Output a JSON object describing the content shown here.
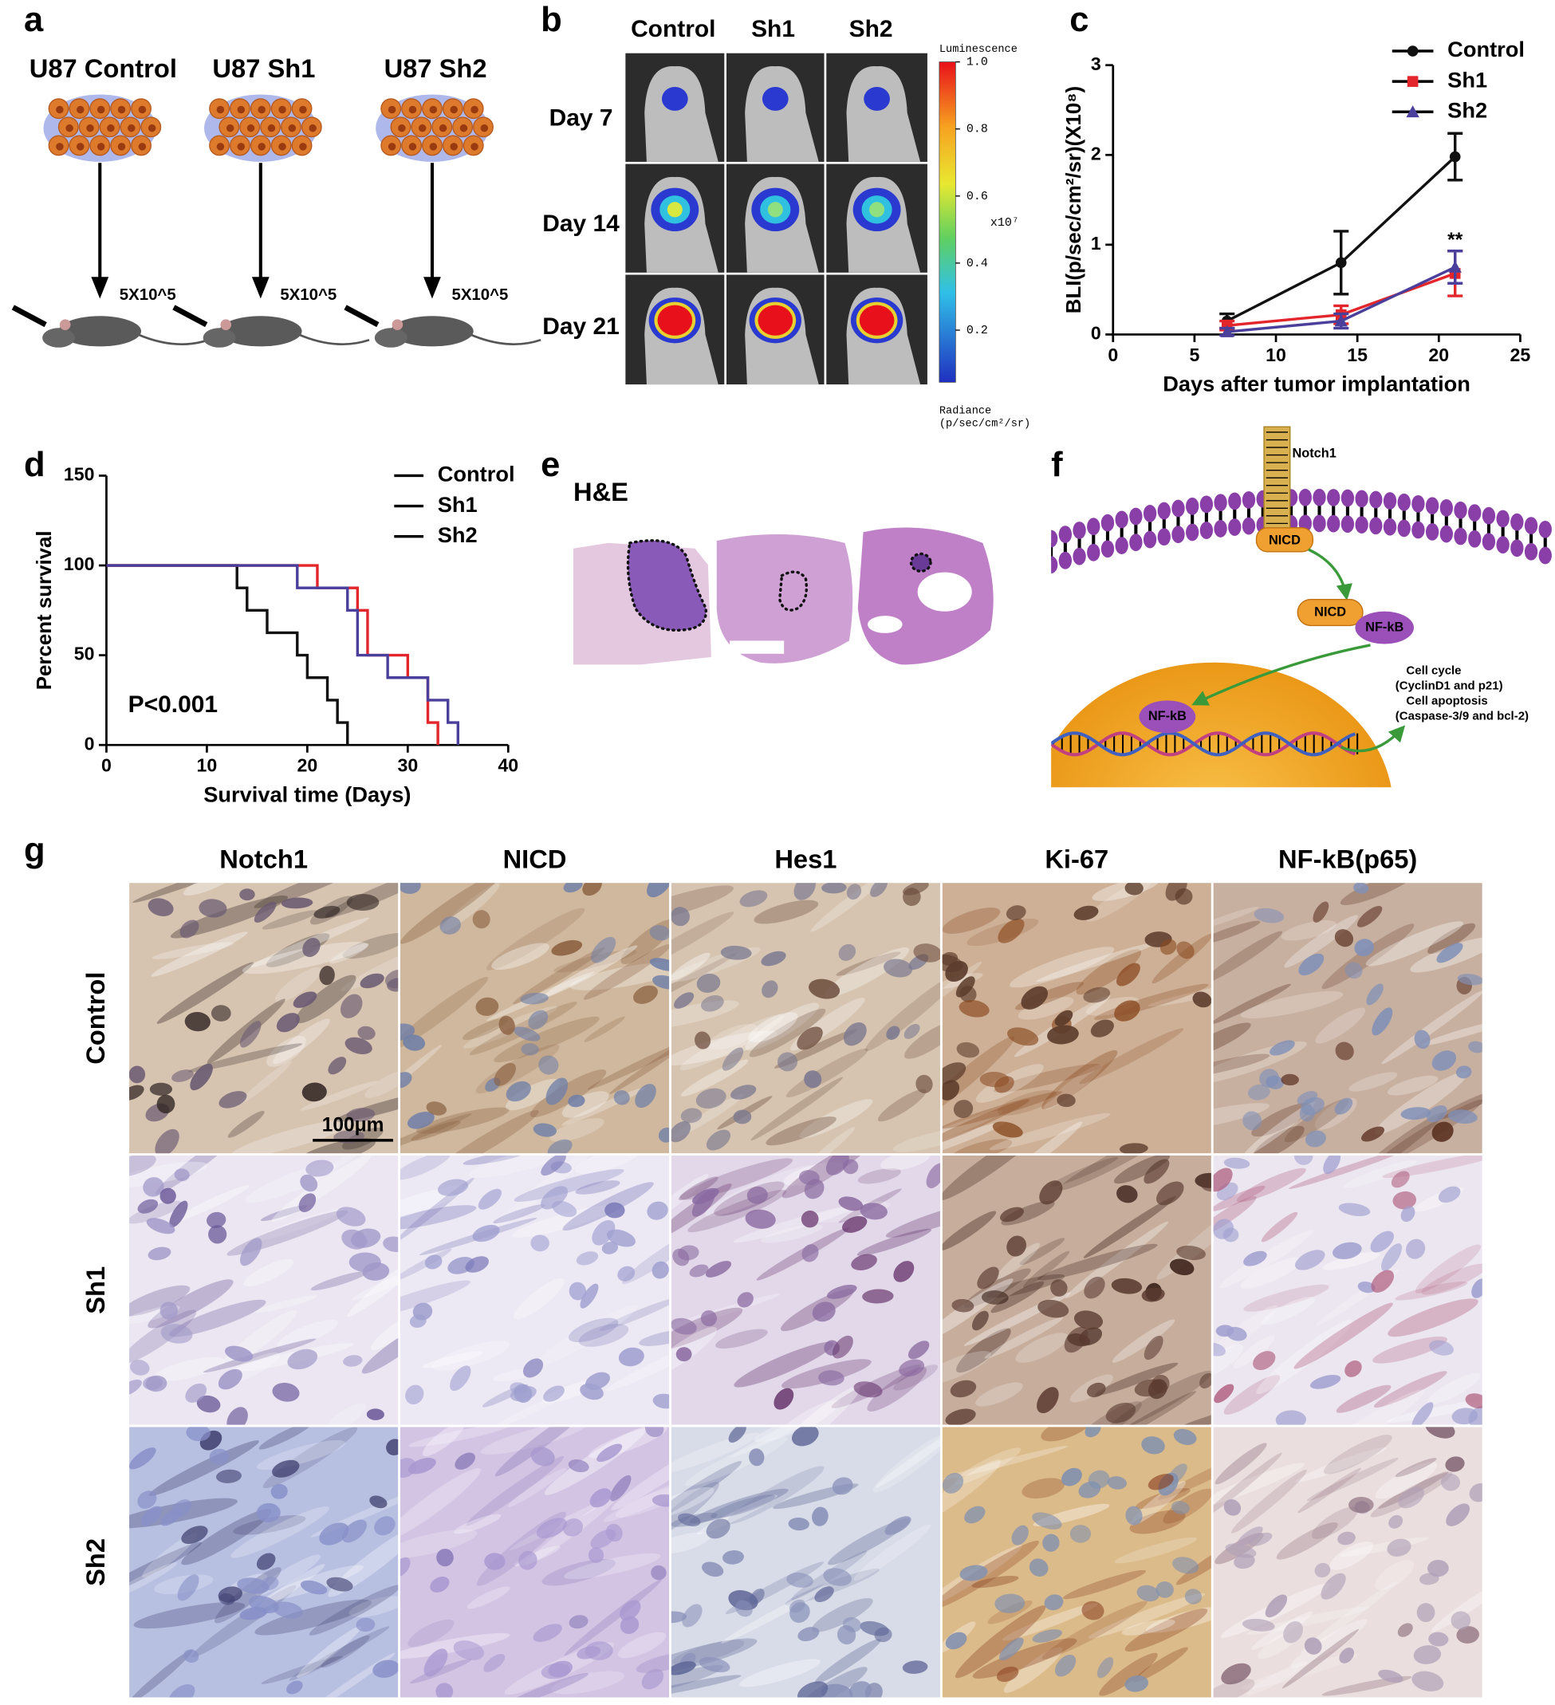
{
  "panels": {
    "a": {
      "label": "a",
      "groups": [
        "U87 Control",
        "U87 Sh1",
        "U87 Sh2"
      ],
      "doses": [
        "5X10^5",
        "5X10^5",
        "5X10^5"
      ]
    },
    "b": {
      "label": "b",
      "columns": [
        "Control",
        "Sh1",
        "Sh2"
      ],
      "rows": [
        "Day 7",
        "Day 14",
        "Day 21"
      ],
      "colorbar": {
        "title": "Luminescence",
        "ticks": [
          {
            "value": 1,
            "label": "1.0"
          },
          0.8,
          0.6,
          0.4,
          0.2
        ],
        "multiplier": "x10⁷",
        "unit_title": "Radiance",
        "unit": "(p/sec/cm²/sr)"
      }
    },
    "c": {
      "label": "c"
    },
    "d": {
      "label": "d"
    },
    "e": {
      "label": "e",
      "stain": "H&E"
    },
    "f": {
      "label": "f",
      "receptor": "Notch1",
      "nicd": "NICD",
      "complex": [
        "NICD",
        "NF-kB"
      ],
      "nuclear": "NF-kB",
      "outcomes": [
        "Cell cycle",
        "(CyclinD1 and  p21)",
        "Cell apoptosis",
        "(Caspase-3/9 and bcl-2)"
      ]
    },
    "g": {
      "label": "g",
      "columns": [
        "Notch1",
        "NICD",
        "Hes1",
        "Ki-67",
        "NF-kB(p65)"
      ],
      "rows": [
        "Control",
        "Sh1",
        "Sh2"
      ],
      "scale_bar": "100μm"
    }
  },
  "chart_data": [
    {
      "type": "line",
      "x": [
        7,
        14,
        21
      ],
      "series": [
        {
          "name": "Control",
          "color": "#111111",
          "marker": "circle",
          "values": [
            0.15,
            0.8,
            1.98
          ],
          "errors": [
            0.08,
            0.35,
            0.26
          ]
        },
        {
          "name": "Sh1",
          "color": "#e3262b",
          "marker": "square",
          "values": [
            0.1,
            0.22,
            0.68
          ],
          "errors": [
            0.05,
            0.1,
            0.25
          ]
        },
        {
          "name": "Sh2",
          "color": "#4b3f9c",
          "marker": "triangle",
          "values": [
            0.03,
            0.15,
            0.75
          ],
          "errors": [
            0.04,
            0.08,
            0.18
          ]
        }
      ],
      "xlabel": "Days after tumor implantation",
      "ylabel": "BLI(p/sec/cm²/sr)(X10⁸)",
      "xlim": [
        0,
        25
      ],
      "ylim": [
        0,
        3
      ],
      "xticks": [
        0,
        5,
        10,
        15,
        20,
        25
      ],
      "yticks": [
        0,
        1,
        2,
        3
      ],
      "annotations": [
        "**"
      ]
    },
    {
      "type": "step",
      "series": [
        {
          "name": "Control",
          "color": "#111111",
          "x": [
            0,
            13,
            14,
            16,
            19,
            20,
            22,
            23,
            24
          ],
          "values": [
            100,
            87.5,
            75,
            62.5,
            50,
            37.5,
            25,
            12.5,
            0
          ]
        },
        {
          "name": "Sh1",
          "color": "#e3262b",
          "x": [
            0,
            21,
            25,
            26,
            30,
            32,
            33
          ],
          "values": [
            100,
            87.5,
            75,
            50,
            37.5,
            12.5,
            0
          ]
        },
        {
          "name": "Sh2",
          "color": "#4b3f9c",
          "x": [
            0,
            19,
            24,
            25,
            28,
            32,
            34,
            35
          ],
          "values": [
            100,
            87.5,
            75,
            50,
            37.5,
            25,
            12.5,
            0
          ]
        }
      ],
      "xlabel": "Survival time (Days)",
      "ylabel": "Percent survival",
      "xlim": [
        0,
        40
      ],
      "ylim": [
        0,
        150
      ],
      "xticks": [
        0,
        10,
        20,
        30,
        40
      ],
      "yticks": [
        0,
        50,
        100,
        150
      ],
      "annotations": [
        "P<0.001"
      ]
    }
  ]
}
